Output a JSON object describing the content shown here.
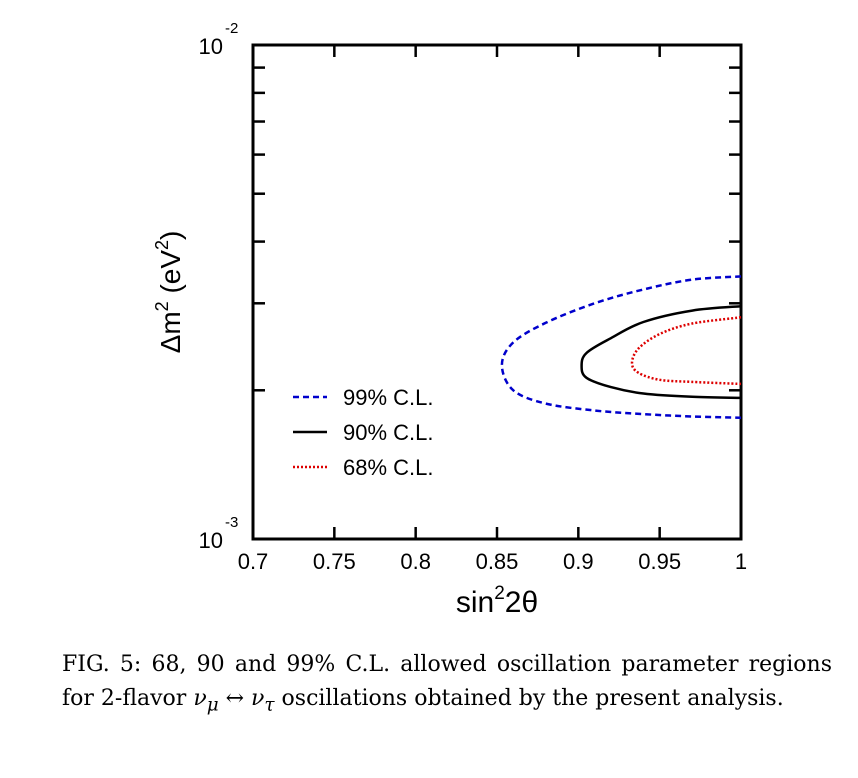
{
  "chart_data": {
    "type": "line",
    "xlabel_base": "sin",
    "xlabel_sup": "2",
    "xlabel_tail": "2θ",
    "ylabel_pre": "Δm",
    "ylabel_sup1": "2",
    "ylabel_mid": " (eV",
    "ylabel_sup2": "2",
    "ylabel_post": ")",
    "xlim": [
      0.7,
      1.0
    ],
    "ylim": [
      0.001,
      0.01
    ],
    "yscale": "log",
    "xticks": [
      0.7,
      0.75,
      0.8,
      0.85,
      0.9,
      0.95,
      1.0
    ],
    "xtick_labels": [
      "0.7",
      "0.75",
      "0.8",
      "0.85",
      "0.9",
      "0.95",
      "1"
    ],
    "ytick_labels": [
      {
        "base": "10",
        "exp": "-2",
        "value": 0.01
      },
      {
        "base": "10",
        "exp": "-3",
        "value": 0.001
      }
    ],
    "legend_position": "lower-left",
    "series": [
      {
        "name": "99% C.L.",
        "color": "#0000cc",
        "dash": "dashed",
        "x": [
          1.0,
          0.97,
          0.94,
          0.91,
          0.88,
          0.86,
          0.853,
          0.86,
          0.88,
          0.91,
          0.94,
          0.97,
          1.0
        ],
        "y": [
          0.0034,
          0.00335,
          0.0032,
          0.003,
          0.00274,
          0.0025,
          0.00225,
          0.002,
          0.00188,
          0.00182,
          0.00179,
          0.00177,
          0.00176
        ]
      },
      {
        "name": "90% C.L.",
        "color": "#000000",
        "dash": "solid",
        "x": [
          1.0,
          0.97,
          0.94,
          0.92,
          0.905,
          0.902,
          0.905,
          0.92,
          0.94,
          0.97,
          1.0
        ],
        "y": [
          0.00296,
          0.0029,
          0.00275,
          0.00255,
          0.00238,
          0.00224,
          0.00212,
          0.00203,
          0.00197,
          0.00194,
          0.00193
        ]
      },
      {
        "name": "68% C.L.",
        "color": "#dd0000",
        "dash": "dotted",
        "x": [
          1.0,
          0.97,
          0.95,
          0.937,
          0.933,
          0.937,
          0.95,
          0.97,
          1.0
        ],
        "y": [
          0.00281,
          0.00273,
          0.0026,
          0.00243,
          0.00227,
          0.00217,
          0.0021,
          0.00208,
          0.00206
        ]
      }
    ]
  },
  "caption": {
    "label": "FIG. 5:",
    "text_a": " 68, 90 and 99% C.L. allowed oscillation parameter regions for 2-flavor ",
    "nu_mu": "ν",
    "nu_mu_sub": "μ",
    "arrow": " ↔ ",
    "nu_tau": "ν",
    "nu_tau_sub": "τ",
    "text_b": " oscillations obtained by the present analysis."
  }
}
